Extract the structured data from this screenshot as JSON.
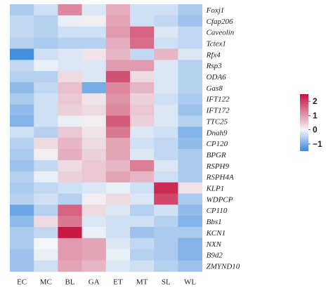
{
  "chart_data": {
    "type": "heatmap",
    "columns": [
      "EC",
      "MC",
      "BL",
      "GA",
      "ET",
      "MT",
      "SL",
      "WL"
    ],
    "rows": [
      "Foxj1",
      "Cfap206",
      "Caveolin",
      "Tctex1",
      "Rfx4",
      "Rsp3",
      "ODA6",
      "Gas8",
      "IFT122",
      "IFT172",
      "TTC25",
      "Dnah9",
      "CP120",
      "BPGR",
      "RSPH9",
      "RSPH4A",
      "KLP1",
      "WDPCP",
      "CP110",
      "Bbs1",
      "KCN1",
      "NXN",
      "B9d2",
      "ZMYND10"
    ],
    "values": [
      [
        -0.6,
        -0.3,
        1.2,
        -0.2,
        0.8,
        -0.3,
        -0.3,
        -0.6
      ],
      [
        -0.4,
        -0.5,
        -0.1,
        0.1,
        0.9,
        -0.3,
        -0.4,
        -0.7
      ],
      [
        -0.4,
        -0.5,
        -0.3,
        -0.3,
        1.0,
        1.6,
        -0.2,
        -0.4
      ],
      [
        -0.5,
        -0.6,
        -0.5,
        -0.5,
        0.8,
        1.5,
        -0.3,
        -0.4
      ],
      [
        -1.4,
        -0.3,
        -0.2,
        0.2,
        0.7,
        -0.4,
        0.7,
        -0.2
      ],
      [
        -0.4,
        -0.1,
        -0.2,
        -0.2,
        1.0,
        1.0,
        -0.2,
        -0.5
      ],
      [
        -0.5,
        -0.5,
        0.3,
        -0.2,
        1.8,
        0.3,
        -0.2,
        -0.5
      ],
      [
        -0.8,
        -0.4,
        0.6,
        -1.0,
        1.2,
        0.7,
        -0.2,
        -0.5
      ],
      [
        -0.6,
        -0.3,
        0.5,
        0.2,
        1.1,
        0.4,
        -0.3,
        -0.6
      ],
      [
        -0.8,
        -0.3,
        0.4,
        0.3,
        1.2,
        0.5,
        -0.2,
        -0.7
      ],
      [
        -0.9,
        -0.3,
        -0.1,
        0.1,
        1.7,
        0.4,
        -0.2,
        -0.5
      ],
      [
        -0.3,
        -0.5,
        0.5,
        0.2,
        1.4,
        -0.2,
        -0.3,
        -0.9
      ],
      [
        -0.5,
        0.3,
        0.7,
        0.3,
        0.9,
        -0.3,
        -0.4,
        -0.8
      ],
      [
        -0.6,
        0.1,
        0.8,
        0.4,
        0.9,
        -0.2,
        -0.4,
        -0.6
      ],
      [
        -0.7,
        -0.4,
        0.3,
        0.5,
        0.7,
        1.3,
        -0.2,
        -0.6
      ],
      [
        -0.5,
        -0.1,
        0.4,
        0.5,
        0.9,
        0.7,
        -0.3,
        -0.6
      ],
      [
        -0.6,
        -0.4,
        -0.3,
        -0.2,
        -0.1,
        -0.3,
        2.2,
        0.2
      ],
      [
        -0.5,
        -0.3,
        -0.5,
        0.1,
        0.3,
        -0.2,
        1.9,
        -0.6
      ],
      [
        -1.1,
        -0.5,
        1.6,
        0.3,
        -0.2,
        -0.5,
        -0.3,
        -0.8
      ],
      [
        -0.8,
        0.3,
        1.4,
        -0.2,
        -0.3,
        -0.3,
        -0.5,
        -0.9
      ],
      [
        -0.6,
        -0.4,
        2.4,
        -0.1,
        -0.3,
        -0.7,
        -0.6,
        -0.6
      ],
      [
        -0.6,
        0.0,
        1.0,
        0.9,
        -0.2,
        -0.4,
        -0.6,
        -0.9
      ],
      [
        -0.7,
        -0.1,
        1.0,
        0.9,
        -0.1,
        -0.5,
        -0.6,
        -0.9
      ],
      [
        -0.7,
        -0.3,
        0.9,
        0.7,
        -0.2,
        -0.3,
        -0.5,
        -0.7
      ]
    ],
    "color_scale": {
      "min": -1.5,
      "max": 2.5,
      "low_color": "#3a87de",
      "mid_color": "#f4f6f9",
      "high_color": "#c4113d",
      "ticks": [
        {
          "value": 2,
          "label": "2"
        },
        {
          "value": 1,
          "label": "1"
        },
        {
          "value": 0,
          "label": "0"
        },
        {
          "value": -1,
          "label": "−1"
        }
      ]
    },
    "legend_position": "right"
  }
}
